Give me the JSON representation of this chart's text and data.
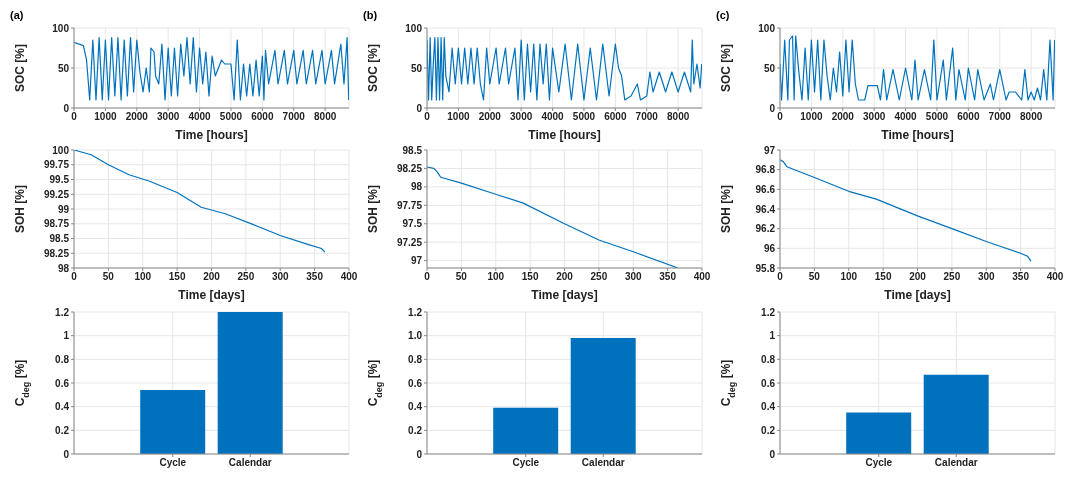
{
  "chart_data": [
    {
      "type": "line",
      "title": "(a)",
      "xlabel": "Time [hours]",
      "ylabel": "SOC [%]",
      "color": "#0072bd",
      "grid": true,
      "xlim": [
        0,
        8760
      ],
      "xticks": [
        0,
        1000,
        2000,
        3000,
        4000,
        5000,
        6000,
        7000,
        8000
      ],
      "ylim": [
        0,
        100
      ],
      "yticks": [
        0,
        50,
        100
      ],
      "x": [
        0,
        300,
        400,
        500,
        600,
        700,
        800,
        900,
        1000,
        1100,
        1200,
        1300,
        1400,
        1500,
        1600,
        1700,
        1800,
        1900,
        2000,
        2100,
        2200,
        2300,
        2400,
        2450,
        2550,
        2600,
        2700,
        2800,
        2900,
        3000,
        3100,
        3200,
        3300,
        3400,
        3500,
        3600,
        3700,
        3800,
        3900,
        4000,
        4100,
        4200,
        4300,
        4400,
        4500,
        4700,
        4800,
        5000,
        5100,
        5200,
        5300,
        5400,
        5500,
        5600,
        5700,
        5800,
        5900,
        6000,
        6050,
        6100,
        6200,
        6400,
        6500,
        6700,
        6800,
        7000,
        7100,
        7300,
        7400,
        7600,
        7700,
        7900,
        8000,
        8200,
        8300,
        8500,
        8600,
        8700,
        8750
      ],
      "values": [
        82,
        78,
        60,
        10,
        85,
        10,
        88,
        10,
        85,
        10,
        88,
        15,
        88,
        10,
        85,
        15,
        88,
        20,
        85,
        45,
        20,
        50,
        20,
        75,
        70,
        40,
        30,
        80,
        10,
        75,
        15,
        75,
        15,
        80,
        40,
        88,
        30,
        88,
        20,
        75,
        30,
        70,
        15,
        65,
        40,
        60,
        55,
        55,
        10,
        85,
        10,
        55,
        15,
        55,
        15,
        60,
        15,
        65,
        10,
        72,
        30,
        72,
        30,
        72,
        30,
        72,
        30,
        72,
        30,
        72,
        30,
        72,
        30,
        72,
        30,
        80,
        30,
        88,
        10
      ]
    },
    {
      "type": "line",
      "title": "(b)",
      "xlabel": "Time [hours]",
      "ylabel": "SOC [%]",
      "color": "#0072bd",
      "grid": true,
      "xlim": [
        0,
        8760
      ],
      "xticks": [
        0,
        1000,
        2000,
        3000,
        4000,
        5000,
        6000,
        7000,
        8000
      ],
      "ylim": [
        0,
        100
      ],
      "yticks": [
        0,
        50,
        100
      ],
      "x": [
        0,
        50,
        100,
        150,
        200,
        250,
        300,
        350,
        400,
        450,
        500,
        550,
        600,
        700,
        800,
        900,
        1000,
        1100,
        1200,
        1300,
        1400,
        1500,
        1600,
        1700,
        1800,
        1900,
        2000,
        2200,
        2300,
        2500,
        2600,
        2800,
        2900,
        3000,
        3100,
        3200,
        3300,
        3400,
        3500,
        3600,
        3700,
        3800,
        3900,
        4000,
        4200,
        4400,
        4600,
        4800,
        5000,
        5200,
        5400,
        5600,
        5800,
        6000,
        6100,
        6200,
        6300,
        6500,
        6700,
        6800,
        7000,
        7100,
        7200,
        7400,
        7600,
        7800,
        8000,
        8200,
        8400,
        8450,
        8500,
        8600,
        8700,
        8750
      ],
      "values": [
        85,
        10,
        88,
        10,
        55,
        88,
        10,
        88,
        10,
        88,
        10,
        88,
        40,
        20,
        75,
        30,
        75,
        30,
        75,
        30,
        75,
        30,
        75,
        30,
        10,
        75,
        30,
        75,
        30,
        75,
        30,
        75,
        10,
        85,
        10,
        80,
        20,
        80,
        10,
        80,
        30,
        80,
        10,
        75,
        20,
        80,
        10,
        80,
        10,
        75,
        10,
        80,
        15,
        80,
        50,
        40,
        10,
        15,
        30,
        10,
        15,
        45,
        20,
        45,
        20,
        45,
        20,
        45,
        20,
        85,
        30,
        55,
        25,
        55
      ]
    },
    {
      "type": "line",
      "title": "(c)",
      "xlabel": "Time [hours]",
      "ylabel": "SOC [%]",
      "color": "#0072bd",
      "grid": true,
      "xlim": [
        0,
        8760
      ],
      "xticks": [
        0,
        1000,
        2000,
        3000,
        4000,
        5000,
        6000,
        7000,
        8000
      ],
      "ylim": [
        0,
        100
      ],
      "yticks": [
        0,
        50,
        100
      ],
      "x": [
        0,
        50,
        150,
        250,
        300,
        400,
        450,
        500,
        600,
        700,
        800,
        900,
        1000,
        1100,
        1200,
        1300,
        1400,
        1500,
        1600,
        1700,
        1800,
        1900,
        2000,
        2100,
        2200,
        2300,
        2400,
        2500,
        2700,
        2800,
        3100,
        3200,
        3300,
        3400,
        3600,
        3800,
        4000,
        4200,
        4300,
        4400,
        4600,
        4800,
        4900,
        5000,
        5200,
        5300,
        5500,
        5600,
        5700,
        5900,
        6000,
        6200,
        6300,
        6500,
        6700,
        6800,
        7000,
        7200,
        7300,
        7500,
        7700,
        7800,
        7900,
        8000,
        8100,
        8200,
        8300,
        8400,
        8500,
        8600,
        8700,
        8750
      ],
      "values": [
        55,
        10,
        85,
        10,
        85,
        90,
        10,
        90,
        45,
        10,
        75,
        10,
        85,
        20,
        85,
        10,
        85,
        40,
        10,
        50,
        20,
        70,
        15,
        85,
        20,
        85,
        30,
        10,
        10,
        28,
        28,
        10,
        48,
        10,
        48,
        10,
        50,
        10,
        60,
        10,
        48,
        10,
        85,
        10,
        60,
        10,
        75,
        10,
        48,
        10,
        50,
        10,
        48,
        10,
        30,
        10,
        48,
        10,
        20,
        20,
        10,
        48,
        10,
        20,
        10,
        25,
        10,
        48,
        10,
        85,
        10,
        85
      ]
    },
    {
      "type": "line",
      "xlabel": "Time [days]",
      "ylabel": "SOH [%]",
      "color": "#0072bd",
      "grid": true,
      "xlim": [
        0,
        400
      ],
      "xticks": [
        0,
        50,
        100,
        150,
        200,
        250,
        300,
        350,
        400
      ],
      "ylim": [
        98,
        100
      ],
      "yticks": [
        98,
        98.25,
        98.5,
        98.75,
        99,
        99.25,
        99.5,
        99.75,
        100
      ],
      "x": [
        0,
        25,
        50,
        80,
        110,
        150,
        185,
        220,
        260,
        300,
        340,
        360,
        365
      ],
      "values": [
        100,
        99.92,
        99.75,
        99.58,
        99.47,
        99.28,
        99.03,
        98.92,
        98.74,
        98.55,
        98.4,
        98.33,
        98.27
      ]
    },
    {
      "type": "line",
      "xlabel": "Time [days]",
      "ylabel": "SOH [%]",
      "color": "#0072bd",
      "grid": true,
      "xlim": [
        0,
        400
      ],
      "xticks": [
        0,
        50,
        100,
        150,
        200,
        250,
        300,
        350,
        400
      ],
      "ylim": [
        96.9,
        98.5
      ],
      "yticks": [
        97,
        97.25,
        97.5,
        97.75,
        98,
        98.25,
        98.5
      ],
      "x": [
        0,
        10,
        15,
        20,
        50,
        100,
        140,
        200,
        250,
        300,
        365
      ],
      "values": [
        98.27,
        98.25,
        98.2,
        98.13,
        98.05,
        97.9,
        97.78,
        97.5,
        97.28,
        97.12,
        96.9
      ]
    },
    {
      "type": "line",
      "xlabel": "Time [days]",
      "ylabel": "SOH [%]",
      "color": "#0072bd",
      "grid": true,
      "xlim": [
        0,
        400
      ],
      "xticks": [
        0,
        50,
        100,
        150,
        200,
        250,
        300,
        350,
        400
      ],
      "ylim": [
        95.8,
        97
      ],
      "yticks": [
        95.8,
        96,
        96.2,
        96.4,
        96.6,
        96.8,
        97
      ],
      "x": [
        0,
        5,
        10,
        50,
        100,
        140,
        200,
        250,
        300,
        350,
        360,
        365
      ],
      "values": [
        96.9,
        96.88,
        96.83,
        96.72,
        96.58,
        96.5,
        96.33,
        96.2,
        96.07,
        95.95,
        95.92,
        95.87
      ]
    },
    {
      "type": "bar",
      "ylabel": "C$_{deg}$ [%]",
      "color": "#0072bd",
      "grid": true,
      "categories": [
        "Cycle",
        "Calendar"
      ],
      "values": [
        0.54,
        1.2
      ],
      "ylim": [
        0,
        1.2
      ],
      "yticks": [
        0,
        0.2,
        0.4,
        0.6,
        0.8,
        1,
        1.2
      ]
    },
    {
      "type": "bar",
      "ylabel": "C$_{deg}$ [%]",
      "color": "#0072bd",
      "grid": true,
      "categories": [
        "Cycle",
        "Calendar"
      ],
      "values": [
        0.39,
        0.98
      ],
      "ylim": [
        0,
        1.2
      ],
      "yticks": [
        0,
        0.2,
        0.4,
        0.6,
        0.8,
        {
          "value": 1,
          "label": "1.0"
        },
        1.2
      ]
    },
    {
      "type": "bar",
      "ylabel": "C$_{deg}$ [%]",
      "color": "#0072bd",
      "grid": true,
      "categories": [
        "Cycle",
        "Calendar"
      ],
      "values": [
        0.35,
        0.67
      ],
      "ylim": [
        0,
        1.2
      ],
      "yticks": [
        0,
        0.2,
        0.4,
        0.6,
        0.8,
        1,
        1.2
      ]
    }
  ]
}
